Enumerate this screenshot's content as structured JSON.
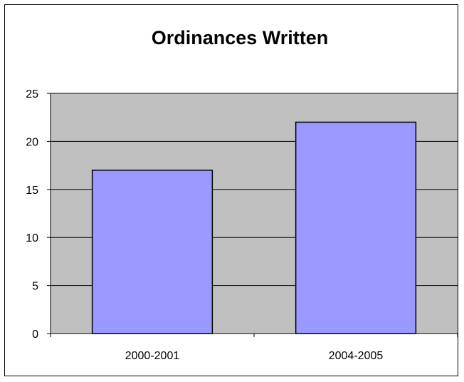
{
  "chart_data": {
    "type": "bar",
    "title": "Ordinances Written",
    "xlabel": "",
    "ylabel": "",
    "categories": [
      "2000-2001",
      "2004-2005"
    ],
    "values": [
      17,
      22
    ],
    "ylim": [
      0,
      25
    ],
    "yticks": [
      0,
      5,
      10,
      15,
      20,
      25
    ],
    "grid": true,
    "legend": "none",
    "colors": {
      "bar": "#9999ff",
      "plot_area": "#c0c0c0",
      "gridline": "#000000"
    }
  }
}
